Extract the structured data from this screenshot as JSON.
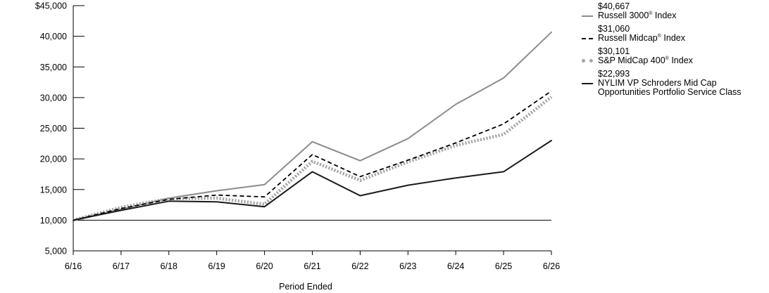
{
  "chart_data": {
    "type": "line",
    "xlabel": "Period Ended",
    "ylabel": "",
    "categories": [
      "6/16",
      "6/17",
      "6/18",
      "6/19",
      "6/20",
      "6/21",
      "6/22",
      "6/23",
      "6/24",
      "6/25",
      "6/26"
    ],
    "ylim": [
      5000,
      45000
    ],
    "yticks": [
      5000,
      10000,
      15000,
      20000,
      25000,
      30000,
      35000,
      40000,
      45000
    ],
    "ytick_labels": [
      "5,000",
      "10,000",
      "15,000",
      "20,000",
      "25,000",
      "30,000",
      "35,000",
      "40,000",
      "$45,000"
    ],
    "reference_line": 10000,
    "grid": false,
    "legend_position": "right",
    "series": [
      {
        "id": "russell3000",
        "name": "Russell 3000",
        "name_suffix": " Index",
        "mark": "®",
        "ending_value": "$40,667",
        "color": "#8c8c8c",
        "style": "solid",
        "values": [
          10000,
          11800,
          13600,
          14800,
          15800,
          22800,
          19700,
          23300,
          28900,
          33200,
          40667
        ]
      },
      {
        "id": "russellmidcap",
        "name": "Russell Midcap",
        "name_suffix": " Index",
        "mark": "®",
        "ending_value": "$31,060",
        "color": "#000000",
        "style": "dashed",
        "values": [
          10000,
          11900,
          13400,
          14100,
          13800,
          20700,
          17100,
          19800,
          22600,
          25700,
          31060
        ]
      },
      {
        "id": "sp400",
        "name": "S&P MidCap 400",
        "name_suffix": " Index",
        "mark": "®",
        "ending_value": "$30,101",
        "color": "#a6a6a6",
        "style": "dotted",
        "values": [
          10000,
          12100,
          13500,
          13600,
          12600,
          19600,
          16500,
          19500,
          22200,
          24000,
          30101
        ]
      },
      {
        "id": "nylim",
        "name": "NYLIM VP Schroders Mid Cap Opportunities Portfolio Service Class",
        "name_suffix": "",
        "mark": "",
        "ending_value": "$22,993",
        "color": "#1a1a1a",
        "style": "solid",
        "values": [
          10000,
          11600,
          13100,
          13000,
          12200,
          17900,
          14000,
          15700,
          16900,
          17900,
          22993
        ]
      }
    ]
  }
}
